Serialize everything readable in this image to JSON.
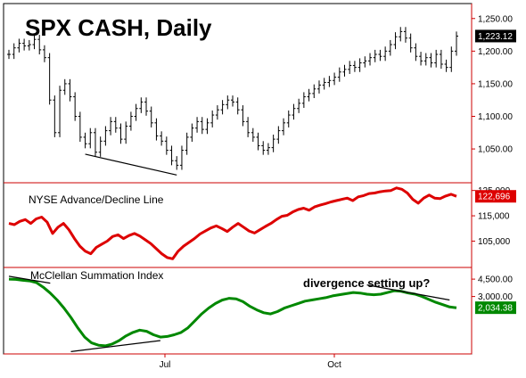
{
  "chart_data": [
    {
      "type": "line",
      "subtype": "ohlc",
      "title": "SPX CASH, Daily",
      "y_ticks": [
        "1,250.00",
        "1,200.00",
        "1,150.00",
        "1,100.00",
        "1,050.00"
      ],
      "ylim": [
        1005,
        1262
      ],
      "last_value_label": "1,223.12",
      "colors": {
        "bars": "#000000",
        "label_bg": "#000000"
      },
      "series": [
        {
          "values": [
            1195,
            1205,
            1212,
            1208,
            1210,
            1218,
            1202,
            1190,
            1125,
            1075,
            1140,
            1150,
            1130,
            1100,
            1068,
            1058,
            1075,
            1045,
            1062,
            1078,
            1092,
            1082,
            1065,
            1085,
            1100,
            1112,
            1122,
            1108,
            1090,
            1070,
            1062,
            1048,
            1032,
            1025,
            1048,
            1068,
            1082,
            1092,
            1080,
            1090,
            1102,
            1110,
            1118,
            1125,
            1122,
            1110,
            1092,
            1075,
            1068,
            1055,
            1048,
            1052,
            1065,
            1078,
            1090,
            1102,
            1112,
            1120,
            1130,
            1135,
            1142,
            1148,
            1152,
            1155,
            1160,
            1168,
            1172,
            1178,
            1175,
            1182,
            1185,
            1190,
            1195,
            1192,
            1200,
            1210,
            1222,
            1230,
            1220,
            1205,
            1192,
            1185,
            1190,
            1182,
            1195,
            1180,
            1175,
            1200,
            1223
          ]
        }
      ],
      "trendlines": [
        {
          "x": [
            15,
            33
          ],
          "y": [
            1042,
            1010
          ]
        }
      ]
    },
    {
      "type": "line",
      "title": "NYSE Advance/Decline Line",
      "y_ticks": [
        "125,000",
        "115,000",
        "105,000"
      ],
      "ylim": [
        96000,
        127000
      ],
      "last_value_label": "122,696",
      "colors": {
        "line": "#dd0000",
        "label_bg": "#dd0000"
      },
      "series": [
        {
          "values": [
            112000,
            111500,
            112800,
            113500,
            112000,
            113800,
            114500,
            112500,
            108000,
            110500,
            112000,
            109500,
            106000,
            103000,
            101000,
            100000,
            102500,
            103800,
            105000,
            106800,
            107500,
            106000,
            107200,
            108000,
            107000,
            105500,
            104000,
            102000,
            100000,
            98500,
            98000,
            101000,
            103000,
            104500,
            106000,
            107800,
            109000,
            110200,
            111000,
            110000,
            108800,
            110500,
            112000,
            110500,
            109000,
            108200,
            109500,
            110800,
            112000,
            113500,
            114800,
            115200,
            116500,
            117500,
            118000,
            117200,
            118500,
            119200,
            119800,
            120500,
            121000,
            121500,
            122000,
            121000,
            122500,
            123000,
            123800,
            124000,
            124500,
            124800,
            125000,
            126000,
            125500,
            124000,
            121500,
            120000,
            122000,
            123200,
            122000,
            121800,
            122800,
            123500,
            122696
          ]
        }
      ]
    },
    {
      "type": "line",
      "title": "McClellan Summation Index",
      "y_ticks": [
        "4,500.00",
        "3,000.00"
      ],
      "ylim": [
        -1800,
        5200
      ],
      "last_value_label": "2,034.38",
      "colors": {
        "line": "#008800",
        "label_bg": "#008800"
      },
      "annotations": [
        "divergence setting up?"
      ],
      "series": [
        {
          "values": [
            4500,
            4480,
            4400,
            4350,
            4200,
            3800,
            3300,
            2700,
            2000,
            1200,
            300,
            -500,
            -1000,
            -1200,
            -1250,
            -1100,
            -800,
            -400,
            -100,
            100,
            0,
            -300,
            -500,
            -450,
            -300,
            -100,
            300,
            900,
            1500,
            2000,
            2400,
            2700,
            2850,
            2800,
            2550,
            2150,
            1850,
            1600,
            1500,
            1700,
            2000,
            2200,
            2400,
            2600,
            2700,
            2800,
            2900,
            3050,
            3150,
            3250,
            3350,
            3300,
            3200,
            3150,
            3200,
            3350,
            3500,
            3450,
            3300,
            3200,
            3000,
            2750,
            2500,
            2300,
            2100,
            2034
          ]
        }
      ],
      "trendlines": [
        {
          "x": [
            0,
            6
          ],
          "y": [
            4750,
            4150
          ]
        },
        {
          "x": [
            9,
            22
          ],
          "y": [
            -1750,
            -800
          ]
        },
        {
          "x": [
            52,
            64
          ],
          "y": [
            4000,
            2700
          ]
        }
      ]
    }
  ],
  "x_axis": {
    "labels": [
      "Jul",
      "Oct"
    ]
  }
}
